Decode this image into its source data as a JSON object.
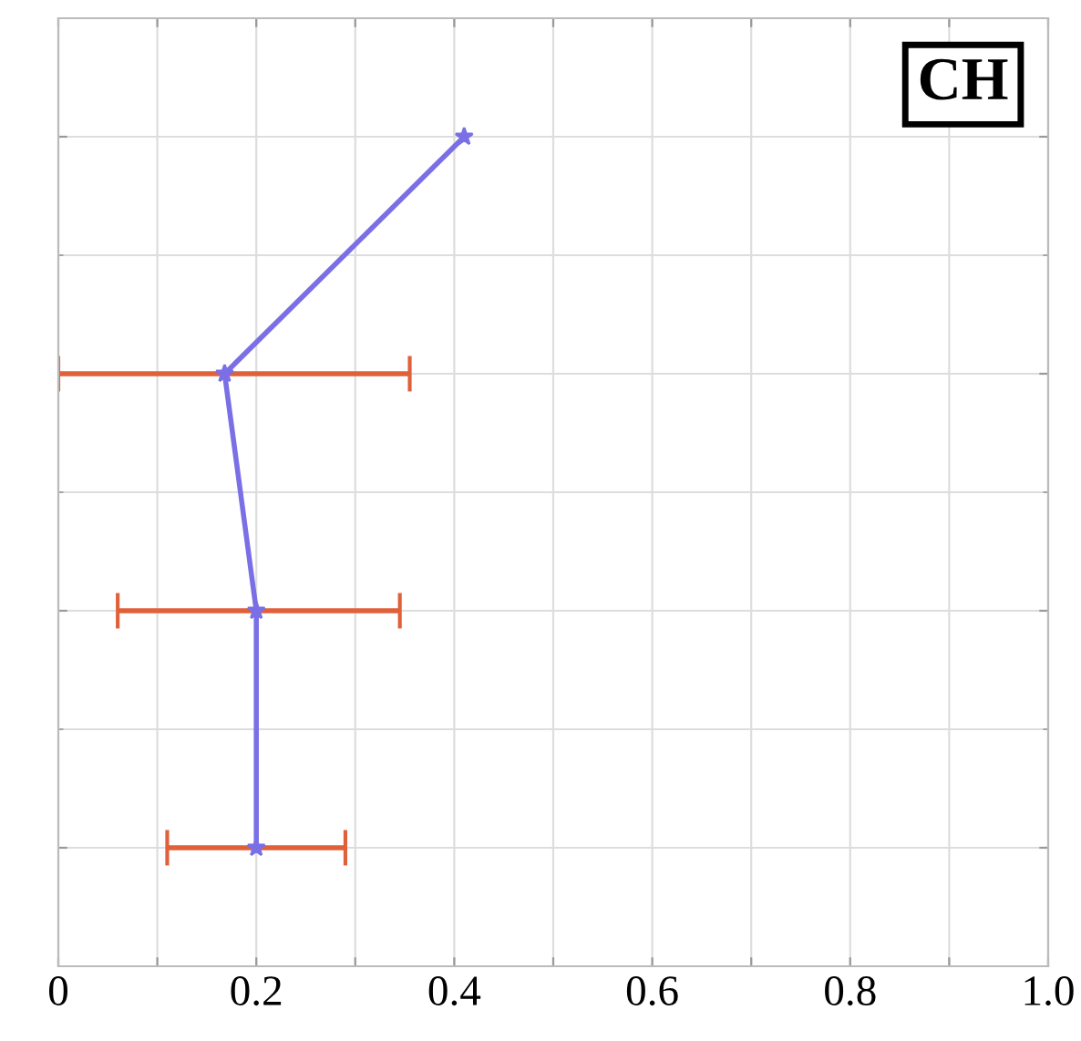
{
  "chart_data": {
    "type": "line",
    "orientation": "horizontal",
    "categories": [
      null,
      null,
      null,
      null
    ],
    "series": [
      {
        "color": "#7b6fe6",
        "values": [
          0.41,
          0.168,
          0.2,
          0.2
        ],
        "errors": [
          null,
          [
            0,
            0.355
          ],
          [
            0.06,
            0.345
          ],
          [
            0.11,
            0.29
          ]
        ]
      }
    ],
    "xlim": [
      0,
      1
    ],
    "xticks": [
      0,
      {
        "value": 0.1,
        "label": null
      },
      0.2,
      {
        "value": 0.3,
        "label": null
      },
      0.4,
      {
        "value": 0.5,
        "label": null
      },
      0.6,
      {
        "value": 0.7,
        "label": null
      },
      0.8,
      {
        "value": 0.9,
        "label": null
      },
      {
        "value": 1,
        "label": "1.0"
      }
    ],
    "tick_labels": "x",
    "grid": true,
    "marker": "star",
    "line_style": "solid",
    "annotations": [
      "CH"
    ]
  }
}
